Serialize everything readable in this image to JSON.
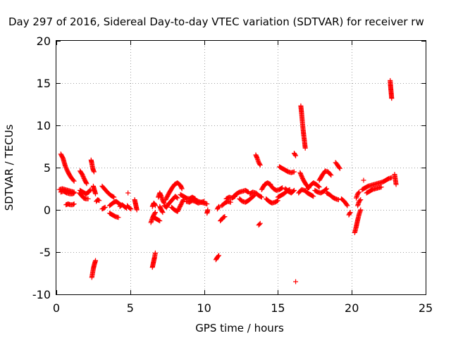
{
  "chart_data": {
    "type": "scatter",
    "title": "Day 297 of 2016, Sidereal Day-to-day VTEC variation (SDTVAR) for receiver rw",
    "xlabel": "GPS time / hours",
    "ylabel": "SDTVAR / TECUs",
    "xlim": [
      0,
      25
    ],
    "ylim": [
      -10,
      20
    ],
    "xticks": [
      "0",
      "5",
      "10",
      "15",
      "20",
      "25"
    ],
    "yticks": [
      "-10",
      "-5",
      "0",
      "5",
      "10",
      "15",
      "20"
    ],
    "grid": true,
    "marker": "+",
    "series_color": "#ff0000",
    "segments": [
      {
        "x": [
          0.3,
          0.45,
          0.6,
          0.75,
          0.9,
          1.05,
          1.2
        ],
        "y": [
          6.6,
          6.1,
          5.2,
          4.6,
          4.1,
          3.7,
          3.4
        ]
      },
      {
        "x": [
          0.2,
          0.4,
          0.6,
          0.8,
          1.0,
          1.2
        ],
        "y": [
          2.4,
          2.5,
          2.4,
          2.3,
          2.2,
          2.1
        ]
      },
      {
        "x": [
          0.3,
          0.5,
          0.7,
          0.9,
          1.1,
          1.2
        ],
        "y": [
          2.1,
          2.2,
          2.0,
          1.9,
          1.9,
          2.0
        ]
      },
      {
        "x": [
          0.65,
          0.8,
          0.95,
          1.1,
          1.2
        ],
        "y": [
          0.6,
          0.7,
          0.6,
          0.6,
          0.7
        ]
      },
      {
        "x": [
          1.6,
          1.75,
          1.9,
          2.05
        ],
        "y": [
          4.6,
          4.2,
          3.6,
          3.1
        ]
      },
      {
        "x": [
          1.55,
          1.7,
          1.85,
          2.0,
          2.15
        ],
        "y": [
          2.0,
          1.7,
          1.4,
          1.3,
          1.3
        ]
      },
      {
        "x": [
          1.6,
          1.8,
          2.0,
          2.2,
          2.3
        ],
        "y": [
          2.3,
          2.1,
          1.9,
          2.1,
          2.4
        ]
      },
      {
        "x": [
          2.35,
          2.4,
          2.45,
          2.5,
          2.55
        ],
        "y": [
          5.9,
          5.5,
          5.0,
          4.7,
          4.5
        ]
      },
      {
        "x": [
          2.4,
          2.45,
          2.5,
          2.55,
          2.6,
          2.65
        ],
        "y": [
          -8.0,
          -7.5,
          -7.0,
          -6.6,
          -6.3,
          -6.0
        ]
      },
      {
        "x": [
          2.5,
          2.55,
          2.6,
          2.65
        ],
        "y": [
          2.8,
          2.5,
          2.2,
          1.9
        ]
      },
      {
        "x": [
          2.7,
          2.8,
          2.9
        ],
        "y": [
          1.0,
          1.2,
          1.1
        ]
      },
      {
        "x": [
          3.1,
          3.3,
          3.5,
          3.7,
          3.9
        ],
        "y": [
          2.8,
          2.4,
          2.0,
          1.7,
          1.5
        ]
      },
      {
        "x": [
          3.1,
          3.3
        ],
        "y": [
          0.1,
          0.3
        ]
      },
      {
        "x": [
          3.6,
          3.8,
          4.0,
          4.2
        ],
        "y": [
          -0.4,
          -0.6,
          -0.8,
          -0.9
        ]
      },
      {
        "x": [
          3.6,
          3.75,
          3.9,
          4.05,
          4.2,
          4.35
        ],
        "y": [
          0.5,
          0.7,
          0.9,
          1.0,
          0.8,
          0.6
        ]
      },
      {
        "x": [
          4.3,
          4.45,
          4.6,
          4.75
        ],
        "y": [
          0.4,
          0.6,
          0.4,
          0.2
        ]
      },
      {
        "x": [
          4.8,
          4.9,
          5.05
        ],
        "y": [
          0.5,
          0.3,
          0.1
        ]
      },
      {
        "x": [
          4.85
        ],
        "y": [
          2.0
        ]
      },
      {
        "x": [
          5.3,
          5.35,
          5.4,
          5.45
        ],
        "y": [
          1.2,
          0.8,
          0.4,
          0.0
        ]
      },
      {
        "x": [
          6.4,
          6.5,
          6.6,
          6.7
        ],
        "y": [
          -1.5,
          -1.0,
          -0.6,
          -0.3
        ]
      },
      {
        "x": [
          6.5,
          6.55,
          6.6,
          6.65,
          6.7
        ],
        "y": [
          0.4,
          0.6,
          0.8,
          0.7,
          0.5
        ]
      },
      {
        "x": [
          6.5,
          6.55,
          6.6,
          6.65,
          6.7
        ],
        "y": [
          -6.8,
          -6.4,
          -6.0,
          -5.6,
          -5.1
        ]
      },
      {
        "x": [
          6.6,
          6.8,
          7.0
        ],
        "y": [
          -0.9,
          -1.1,
          -1.3
        ]
      },
      {
        "x": [
          6.9,
          7.0,
          7.1,
          7.2,
          7.3
        ],
        "y": [
          1.5,
          2.0,
          1.6,
          1.1,
          0.8
        ]
      },
      {
        "x": [
          7.0,
          7.1,
          7.2
        ],
        "y": [
          0.4,
          0.0,
          -0.3
        ]
      },
      {
        "x": [
          7.3,
          7.45,
          7.6,
          7.75,
          7.9,
          8.05,
          8.2
        ],
        "y": [
          0.5,
          0.3,
          0.7,
          1.0,
          1.3,
          1.6,
          1.4
        ]
      },
      {
        "x": [
          7.4,
          7.6,
          7.8,
          8.0,
          8.2,
          8.4,
          8.5
        ],
        "y": [
          1.2,
          1.9,
          2.5,
          3.0,
          3.2,
          2.9,
          2.5
        ]
      },
      {
        "x": [
          7.8,
          8.0,
          8.2,
          8.4,
          8.6
        ],
        "y": [
          0.3,
          0.0,
          -0.2,
          0.5,
          1.2
        ]
      },
      {
        "x": [
          8.4,
          8.6,
          8.8,
          9.0,
          9.2,
          9.4
        ],
        "y": [
          1.8,
          1.6,
          1.4,
          1.3,
          1.5,
          1.3
        ]
      },
      {
        "x": [
          8.8,
          9.0,
          9.2,
          9.4,
          9.6,
          9.8,
          10.0
        ],
        "y": [
          1.0,
          0.9,
          1.1,
          1.0,
          0.8,
          0.9,
          1.0
        ]
      },
      {
        "x": [
          9.2,
          9.4,
          9.6,
          9.8,
          10.0,
          10.2
        ],
        "y": [
          1.4,
          1.2,
          1.0,
          0.9,
          0.8,
          0.7
        ]
      },
      {
        "x": [
          10.2,
          10.25
        ],
        "y": [
          -0.4,
          0.0
        ]
      },
      {
        "x": [
          10.8,
          10.9,
          11.0
        ],
        "y": [
          -5.9,
          -5.6,
          -5.4
        ]
      },
      {
        "x": [
          10.9,
          11.0
        ],
        "y": [
          0.1,
          0.4
        ]
      },
      {
        "x": [
          11.1,
          11.2,
          11.3,
          11.4
        ],
        "y": [
          -1.3,
          -1.1,
          -0.9,
          -0.8
        ]
      },
      {
        "x": [
          11.2,
          11.4,
          11.6,
          11.8
        ],
        "y": [
          0.5,
          0.8,
          1.0,
          0.9
        ]
      },
      {
        "x": [
          11.5,
          11.7,
          11.9,
          12.1
        ],
        "y": [
          1.3,
          1.5,
          1.4,
          1.6
        ]
      },
      {
        "x": [
          12.0,
          12.2,
          12.4,
          12.6,
          12.8,
          13.0
        ],
        "y": [
          1.6,
          1.9,
          2.1,
          2.2,
          2.3,
          2.1
        ]
      },
      {
        "x": [
          12.4,
          12.6,
          12.8,
          13.0,
          13.2,
          13.4
        ],
        "y": [
          1.3,
          1.0,
          0.9,
          1.1,
          1.4,
          1.7
        ]
      },
      {
        "x": [
          13.1,
          13.3,
          13.5,
          13.7,
          13.9
        ],
        "y": [
          1.9,
          2.1,
          2.0,
          1.7,
          1.5
        ]
      },
      {
        "x": [
          13.5,
          13.6,
          13.7,
          13.8
        ],
        "y": [
          6.5,
          6.1,
          5.6,
          5.3
        ]
      },
      {
        "x": [
          13.7,
          13.8
        ],
        "y": [
          -1.8,
          -1.6
        ]
      },
      {
        "x": [
          13.9,
          14.1,
          14.3,
          14.5
        ],
        "y": [
          2.4,
          3.0,
          3.2,
          3.0
        ]
      },
      {
        "x": [
          14.2,
          14.4,
          14.6,
          14.8,
          15.0
        ],
        "y": [
          1.3,
          1.0,
          0.8,
          0.9,
          1.1
        ]
      },
      {
        "x": [
          14.5,
          14.7,
          14.9,
          15.1,
          15.3
        ],
        "y": [
          2.9,
          2.5,
          2.3,
          2.4,
          2.6
        ]
      },
      {
        "x": [
          15.0,
          15.2,
          15.4,
          15.6,
          15.8
        ],
        "y": [
          1.5,
          1.7,
          1.9,
          2.2,
          2.4
        ]
      },
      {
        "x": [
          15.1,
          15.3,
          15.5,
          15.7,
          15.9,
          16.1
        ],
        "y": [
          5.1,
          4.9,
          4.7,
          4.5,
          4.4,
          4.5
        ]
      },
      {
        "x": [
          15.5,
          15.7,
          15.9,
          16.1
        ],
        "y": [
          2.5,
          2.2,
          2.0,
          2.3
        ]
      },
      {
        "x": [
          16.1,
          16.2
        ],
        "y": [
          6.7,
          6.4
        ]
      },
      {
        "x": [
          16.2
        ],
        "y": [
          -8.5
        ]
      },
      {
        "x": [
          16.55,
          16.6,
          16.65,
          16.7,
          16.75,
          16.8,
          16.85
        ],
        "y": [
          12.3,
          11.5,
          10.5,
          9.6,
          8.8,
          8.1,
          7.3
        ]
      },
      {
        "x": [
          16.5,
          16.7,
          16.9,
          17.1
        ],
        "y": [
          4.4,
          3.6,
          3.0,
          2.6
        ]
      },
      {
        "x": [
          16.4,
          16.6,
          16.8,
          17.0,
          17.2,
          17.4
        ],
        "y": [
          2.0,
          2.4,
          2.3,
          2.0,
          1.8,
          1.6
        ]
      },
      {
        "x": [
          17.0,
          17.2,
          17.4,
          17.6,
          17.8
        ],
        "y": [
          2.5,
          2.9,
          3.2,
          3.0,
          2.7
        ]
      },
      {
        "x": [
          17.5,
          17.7,
          17.9,
          18.1,
          18.3
        ],
        "y": [
          2.3,
          2.1,
          2.0,
          2.2,
          2.5
        ]
      },
      {
        "x": [
          17.8,
          18.0,
          18.2,
          18.4,
          18.6
        ],
        "y": [
          3.5,
          4.1,
          4.6,
          4.5,
          4.1
        ]
      },
      {
        "x": [
          18.3,
          18.5,
          18.7,
          18.9,
          19.1
        ],
        "y": [
          2.0,
          1.8,
          1.5,
          1.3,
          1.2
        ]
      },
      {
        "x": [
          18.9,
          19.0,
          19.1,
          19.2
        ],
        "y": [
          5.6,
          5.4,
          5.1,
          4.9
        ]
      },
      {
        "x": [
          19.3,
          19.5,
          19.7
        ],
        "y": [
          1.3,
          1.0,
          0.5
        ]
      },
      {
        "x": [
          19.8,
          19.9
        ],
        "y": [
          -0.6,
          -0.3
        ]
      },
      {
        "x": [
          20.2,
          20.3,
          20.4,
          20.5,
          20.6
        ],
        "y": [
          -2.7,
          -2.0,
          -1.2,
          -0.5,
          0.0
        ]
      },
      {
        "x": [
          20.3,
          20.4,
          20.5
        ],
        "y": [
          1.4,
          1.9,
          2.1
        ]
      },
      {
        "x": [
          20.4,
          20.5,
          20.6
        ],
        "y": [
          0.5,
          1.0,
          1.2
        ]
      },
      {
        "x": [
          20.8
        ],
        "y": [
          3.5
        ]
      },
      {
        "x": [
          20.7,
          20.9,
          21.1,
          21.3,
          21.5,
          21.7,
          21.9,
          22.1,
          22.3,
          22.5,
          22.7
        ],
        "y": [
          2.4,
          2.6,
          2.8,
          2.9,
          3.0,
          3.1,
          3.2,
          3.3,
          3.5,
          3.7,
          3.8
        ]
      },
      {
        "x": [
          21.0,
          21.2,
          21.4,
          21.6,
          21.8,
          22.0
        ],
        "y": [
          2.0,
          2.2,
          2.4,
          2.5,
          2.6,
          2.7
        ]
      },
      {
        "x": [
          22.6,
          22.62,
          22.64,
          22.66,
          22.68,
          22.7
        ],
        "y": [
          15.3,
          14.8,
          14.4,
          14.0,
          13.6,
          13.2
        ]
      },
      {
        "x": [
          22.9,
          23.0
        ],
        "y": [
          4.2,
          3.0
        ]
      }
    ]
  }
}
